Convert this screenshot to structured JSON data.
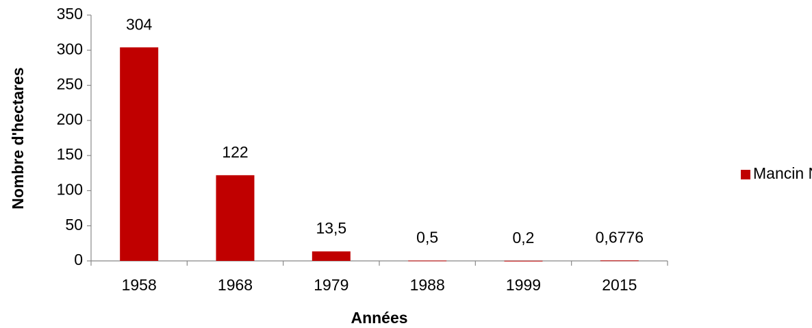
{
  "chart_data": {
    "type": "bar",
    "x_label": "Années",
    "y_label": "Nombre d'hectares",
    "categories": [
      "1958",
      "1968",
      "1979",
      "1988",
      "1999",
      "2015"
    ],
    "series": [
      {
        "name": "Mancin N",
        "color": "#c00000",
        "values": [
          304,
          122,
          13.5,
          0.5,
          0.2,
          0.6776
        ],
        "value_labels": [
          "304",
          "122",
          "13,5",
          "0,5",
          "0,2",
          "0,6776"
        ]
      }
    ],
    "ylim": [
      0,
      350
    ],
    "yticks": [
      0,
      50,
      100,
      150,
      200,
      250,
      300,
      350
    ],
    "legend": "right"
  }
}
